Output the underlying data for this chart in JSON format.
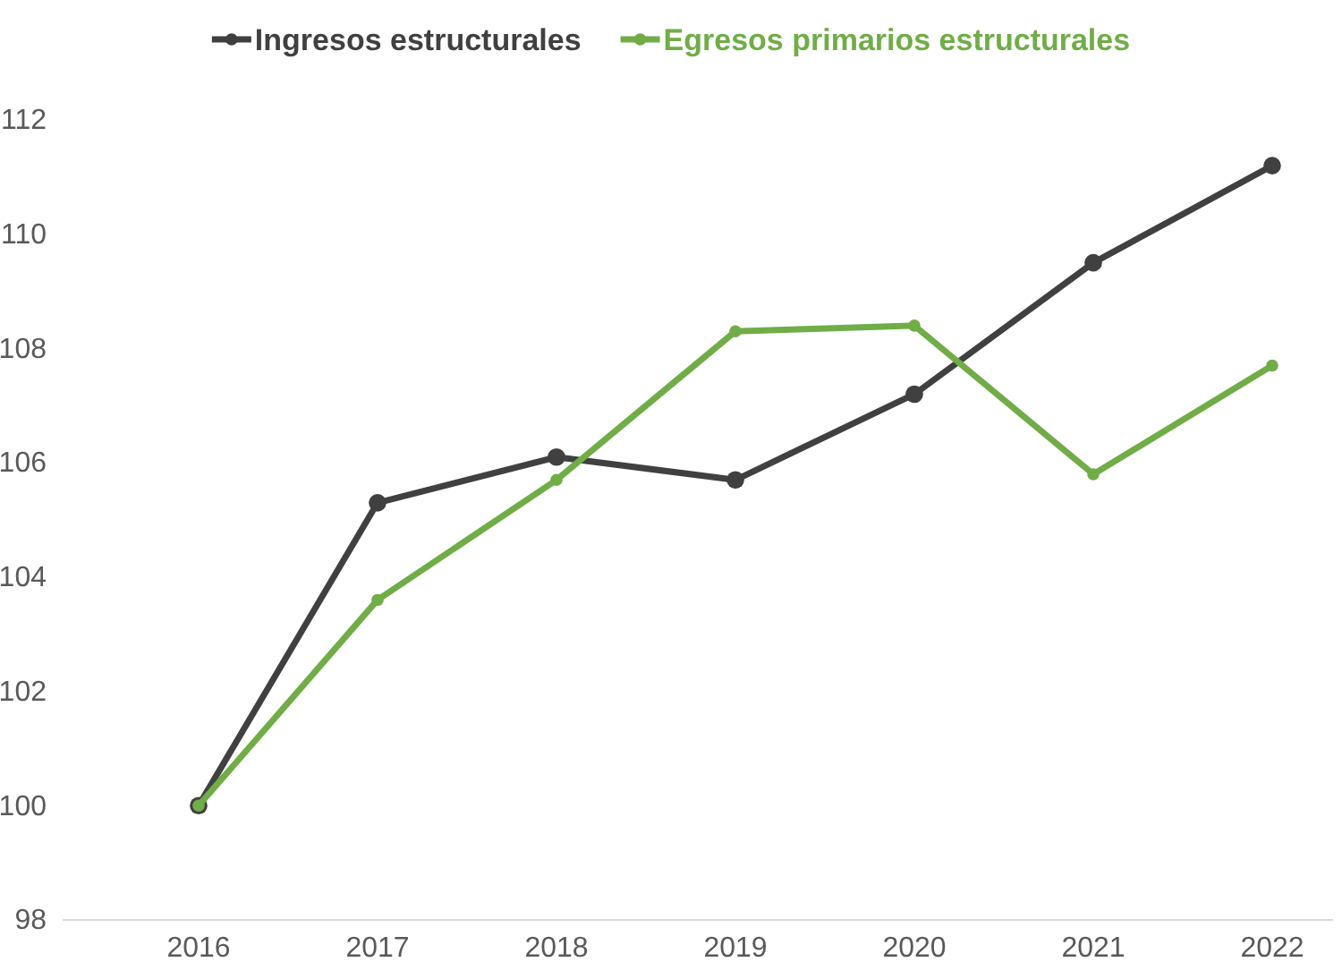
{
  "chart_data": {
    "type": "line",
    "categories": [
      "2016",
      "2017",
      "2018",
      "2019",
      "2020",
      "2021",
      "2022"
    ],
    "series": [
      {
        "name": "Ingresos estructurales",
        "color": "#404040",
        "values": [
          100,
          105.3,
          106.1,
          105.7,
          107.2,
          109.5,
          111.2
        ]
      },
      {
        "name": "Egresos primarios estructurales",
        "color": "#70ad47",
        "values": [
          100,
          103.6,
          105.7,
          108.3,
          108.4,
          105.8,
          107.7
        ]
      }
    ],
    "ylim": [
      98,
      112
    ],
    "yticks": [
      98,
      100,
      102,
      104,
      106,
      108,
      110,
      112
    ],
    "grid": false,
    "legend": "top",
    "marker": "circle",
    "line_style": "solid"
  }
}
